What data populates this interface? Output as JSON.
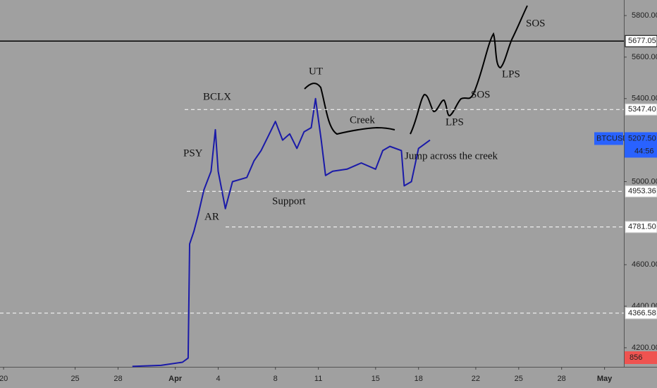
{
  "chart_data": {
    "type": "line",
    "symbol": "BTCUSD",
    "x": [
      9,
      11,
      12.5,
      12.9,
      13.0,
      13.3,
      13.6,
      14,
      14.5,
      14.8,
      15,
      15.5,
      16,
      17,
      17.5,
      18,
      18.5,
      19,
      19.5,
      20,
      20.5,
      21,
      21.5,
      21.8,
      22.2,
      22.5,
      23,
      24,
      25,
      26,
      26.5,
      27,
      27.8,
      28,
      28.5,
      29,
      29.8
    ],
    "values": [
      4110,
      4115,
      4130,
      4150,
      4700,
      4760,
      4840,
      4960,
      5050,
      5250,
      5050,
      4870,
      5000,
      5020,
      5100,
      5150,
      5220,
      5290,
      5200,
      5230,
      5160,
      5240,
      5260,
      5400,
      5200,
      5030,
      5050,
      5060,
      5090,
      5060,
      5150,
      5170,
      5150,
      4980,
      5000,
      5160,
      5200
    ],
    "color": "#1a1aa8",
    "xlim": [
      -0.25,
      43.35
    ],
    "xticks": [
      {
        "value": 0,
        "label": "20"
      },
      {
        "value": 5,
        "label": "25"
      },
      {
        "value": 8,
        "label": "28"
      },
      {
        "value": 12,
        "label": "Apr"
      },
      {
        "value": 15,
        "label": "4"
      },
      {
        "value": 19,
        "label": "8"
      },
      {
        "value": 22,
        "label": "11"
      },
      {
        "value": 26,
        "label": "15"
      },
      {
        "value": 29,
        "label": "18"
      },
      {
        "value": 33,
        "label": "22"
      },
      {
        "value": 36,
        "label": "25"
      },
      {
        "value": 39,
        "label": "28"
      },
      {
        "value": 42,
        "label": "May"
      }
    ],
    "ylim": [
      4108,
      5875
    ],
    "yticks": [
      {
        "value": 4200,
        "label": "4200.00"
      },
      {
        "value": 4400,
        "label": "4400.00"
      },
      {
        "value": 4600,
        "label": "4600.00"
      },
      {
        "value": 5000,
        "label": "5000.00"
      },
      {
        "value": 5400,
        "label": "5400.00"
      },
      {
        "value": 5600,
        "label": "5600.00"
      },
      {
        "value": 5800,
        "label": "5800.00"
      }
    ],
    "levels": [
      {
        "price": 5677.05,
        "style": "solid"
      },
      {
        "price": {
          "value": 5347.4,
          "label": "5347.40"
        },
        "style": "dashed"
      },
      {
        "price": 4953.36,
        "style": "dashed"
      },
      {
        "price": {
          "value": 4781.5,
          "label": "4781.50"
        },
        "style": "dashed"
      },
      {
        "price": 4366.58,
        "style": "dashed"
      }
    ],
    "last_price": {
      "value": 5207.5,
      "label": "5207.50"
    },
    "countdown": "44:56",
    "last_volume": 856,
    "annotations": [
      "PSY",
      "AR",
      "BCLX",
      "UT",
      "Creek",
      "Support",
      "Jump across the creek",
      "LPS",
      "SOS",
      "LPS",
      "SOS"
    ]
  }
}
